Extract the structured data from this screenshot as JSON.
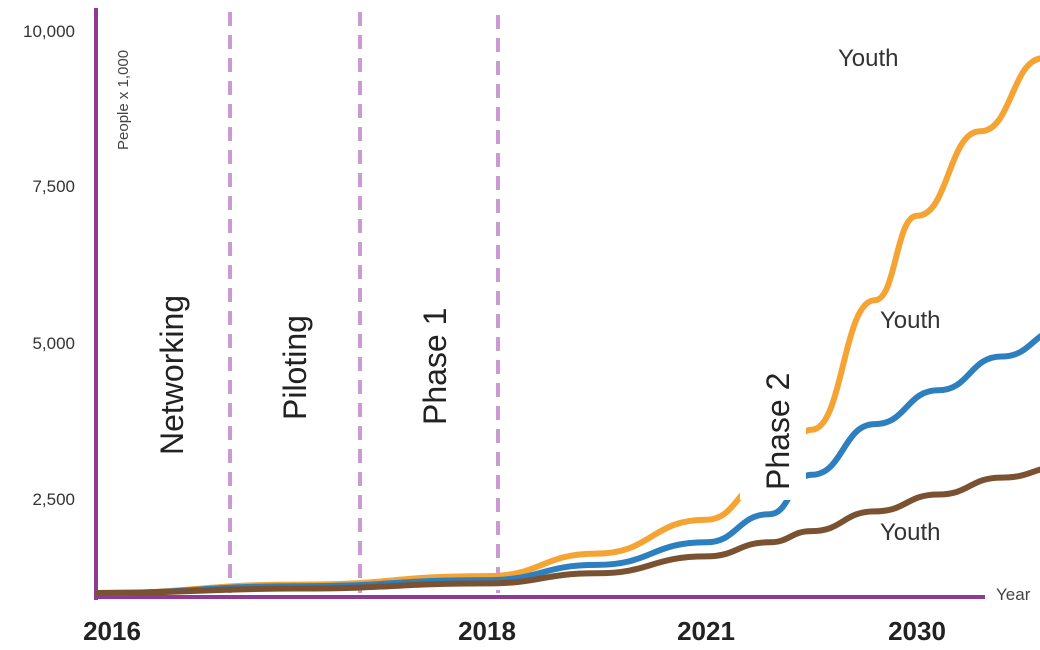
{
  "chart_data": {
    "type": "line",
    "xlabel": "Year",
    "ylabel": "People x 1,000",
    "x_ticks": [
      "2016",
      "2018",
      "2021",
      "2030"
    ],
    "y_ticks": [
      "2,500",
      "5,000",
      "7,500",
      "10,000"
    ],
    "ylim": [
      0,
      10000
    ],
    "phases": [
      "Networking",
      "Piloting",
      "Phase 1",
      "Phase 2"
    ],
    "series": [
      {
        "name": "Youth",
        "color": "#f5a333",
        "points": [
          [
            0,
            0
          ],
          [
            0.5,
            150
          ],
          [
            1,
            300
          ],
          [
            1.5,
            700
          ],
          [
            2,
            1300
          ],
          [
            2.3,
            2000
          ],
          [
            2.5,
            2900
          ],
          [
            2.8,
            5200
          ],
          [
            3,
            6700
          ],
          [
            3.3,
            8200
          ],
          [
            3.6,
            9500
          ],
          [
            3.85,
            10000
          ]
        ]
      },
      {
        "name": "Youth",
        "color": "#2e7fc0",
        "points": [
          [
            0,
            0
          ],
          [
            0.5,
            120
          ],
          [
            1,
            230
          ],
          [
            1.5,
            500
          ],
          [
            2,
            900
          ],
          [
            2.3,
            1400
          ],
          [
            2.5,
            2100
          ],
          [
            2.8,
            3000
          ],
          [
            3.1,
            3600
          ],
          [
            3.4,
            4200
          ],
          [
            3.7,
            4700
          ],
          [
            3.85,
            4900
          ]
        ]
      },
      {
        "name": "Youth",
        "color": "#7a5232",
        "points": [
          [
            0,
            0
          ],
          [
            0.5,
            80
          ],
          [
            1,
            170
          ],
          [
            1.5,
            350
          ],
          [
            2,
            650
          ],
          [
            2.3,
            900
          ],
          [
            2.5,
            1100
          ],
          [
            2.8,
            1450
          ],
          [
            3.1,
            1750
          ],
          [
            3.4,
            2050
          ],
          [
            3.7,
            2250
          ],
          [
            3.85,
            2350
          ]
        ]
      }
    ]
  }
}
